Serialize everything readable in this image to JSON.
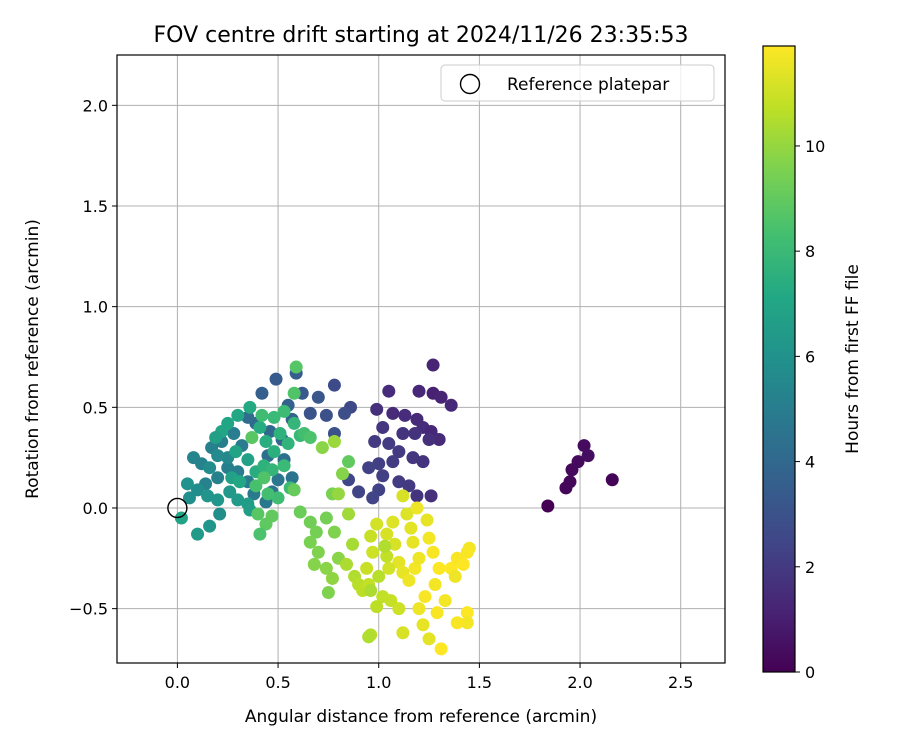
{
  "chart_data": {
    "type": "scatter",
    "title": "FOV centre drift starting at 2024/11/26 23:35:53",
    "xlabel": "Angular distance from reference (arcmin)",
    "ylabel": "Rotation from reference (arcmin)",
    "xlim": [
      -0.3,
      2.72
    ],
    "ylim": [
      -0.77,
      2.25
    ],
    "xticks": [
      0.0,
      0.5,
      1.0,
      1.5,
      2.0,
      2.5
    ],
    "xtick_labels": [
      "0.0",
      "0.5",
      "1.0",
      "1.5",
      "2.0",
      "2.5"
    ],
    "yticks": [
      -0.5,
      0.0,
      0.5,
      1.0,
      1.5,
      2.0
    ],
    "ytick_labels": [
      "−0.5",
      "0.0",
      "0.5",
      "1.0",
      "1.5",
      "2.0"
    ],
    "grid": true,
    "legend": {
      "position": "top-right",
      "entries": [
        "Reference platepar"
      ]
    },
    "reference_point": {
      "x": 0.0,
      "y": 0.0,
      "marker": "open-circle"
    },
    "colorbar": {
      "label": "Hours from first FF file",
      "colormap": "viridis",
      "range": [
        0,
        11.9
      ],
      "ticks": [
        0,
        2,
        4,
        6,
        8,
        10
      ],
      "tick_labels": [
        "0",
        "2",
        "4",
        "6",
        "8",
        "10"
      ]
    },
    "points": [
      {
        "x": 1.84,
        "y": 0.01,
        "c": 0.0
      },
      {
        "x": 1.93,
        "y": 0.1,
        "c": 0.15
      },
      {
        "x": 1.95,
        "y": 0.13,
        "c": 0.2
      },
      {
        "x": 1.96,
        "y": 0.19,
        "c": 0.25
      },
      {
        "x": 1.99,
        "y": 0.23,
        "c": 0.3
      },
      {
        "x": 2.02,
        "y": 0.31,
        "c": 0.35
      },
      {
        "x": 2.04,
        "y": 0.26,
        "c": 0.4
      },
      {
        "x": 2.16,
        "y": 0.14,
        "c": 0.1
      },
      {
        "x": 1.27,
        "y": 0.71,
        "c": 1.2
      },
      {
        "x": 1.2,
        "y": 0.58,
        "c": 1.3
      },
      {
        "x": 1.27,
        "y": 0.57,
        "c": 1.1
      },
      {
        "x": 1.31,
        "y": 0.55,
        "c": 1.2
      },
      {
        "x": 1.36,
        "y": 0.51,
        "c": 1.3
      },
      {
        "x": 1.05,
        "y": 0.58,
        "c": 1.5
      },
      {
        "x": 0.99,
        "y": 0.49,
        "c": 1.6
      },
      {
        "x": 1.07,
        "y": 0.47,
        "c": 1.4
      },
      {
        "x": 1.13,
        "y": 0.46,
        "c": 1.5
      },
      {
        "x": 1.19,
        "y": 0.44,
        "c": 1.4
      },
      {
        "x": 1.22,
        "y": 0.4,
        "c": 1.5
      },
      {
        "x": 1.26,
        "y": 0.38,
        "c": 1.3
      },
      {
        "x": 1.3,
        "y": 0.34,
        "c": 1.4
      },
      {
        "x": 1.25,
        "y": 0.34,
        "c": 1.6
      },
      {
        "x": 1.18,
        "y": 0.37,
        "c": 1.7
      },
      {
        "x": 1.12,
        "y": 0.37,
        "c": 1.8
      },
      {
        "x": 1.02,
        "y": 0.4,
        "c": 1.9
      },
      {
        "x": 0.98,
        "y": 0.33,
        "c": 2.0
      },
      {
        "x": 1.05,
        "y": 0.32,
        "c": 2.1
      },
      {
        "x": 1.1,
        "y": 0.28,
        "c": 2.0
      },
      {
        "x": 1.17,
        "y": 0.25,
        "c": 1.9
      },
      {
        "x": 1.22,
        "y": 0.23,
        "c": 1.8
      },
      {
        "x": 1.07,
        "y": 0.23,
        "c": 2.1
      },
      {
        "x": 1.0,
        "y": 0.22,
        "c": 2.2
      },
      {
        "x": 0.95,
        "y": 0.2,
        "c": 2.3
      },
      {
        "x": 1.02,
        "y": 0.16,
        "c": 2.2
      },
      {
        "x": 1.1,
        "y": 0.13,
        "c": 2.1
      },
      {
        "x": 1.15,
        "y": 0.11,
        "c": 2.0
      },
      {
        "x": 1.0,
        "y": 0.09,
        "c": 2.3
      },
      {
        "x": 0.97,
        "y": 0.05,
        "c": 2.4
      },
      {
        "x": 1.19,
        "y": 0.06,
        "c": 1.8
      },
      {
        "x": 1.26,
        "y": 0.06,
        "c": 1.6
      },
      {
        "x": 0.9,
        "y": 0.08,
        "c": 2.4
      },
      {
        "x": 0.85,
        "y": 0.14,
        "c": 2.5
      },
      {
        "x": 0.86,
        "y": 0.5,
        "c": 2.6
      },
      {
        "x": 0.78,
        "y": 0.61,
        "c": 2.7
      },
      {
        "x": 0.83,
        "y": 0.47,
        "c": 2.8
      },
      {
        "x": 0.74,
        "y": 0.46,
        "c": 2.9
      },
      {
        "x": 0.78,
        "y": 0.37,
        "c": 3.0
      },
      {
        "x": 0.66,
        "y": 0.47,
        "c": 3.1
      },
      {
        "x": 0.7,
        "y": 0.55,
        "c": 3.2
      },
      {
        "x": 0.62,
        "y": 0.57,
        "c": 3.3
      },
      {
        "x": 0.59,
        "y": 0.67,
        "c": 3.5
      },
      {
        "x": 0.49,
        "y": 0.64,
        "c": 3.4
      },
      {
        "x": 0.42,
        "y": 0.57,
        "c": 3.6
      },
      {
        "x": 0.55,
        "y": 0.51,
        "c": 3.7
      },
      {
        "x": 0.57,
        "y": 0.44,
        "c": 3.8
      },
      {
        "x": 0.52,
        "y": 0.34,
        "c": 3.9
      },
      {
        "x": 0.46,
        "y": 0.38,
        "c": 4.0
      },
      {
        "x": 0.39,
        "y": 0.42,
        "c": 4.1
      },
      {
        "x": 0.35,
        "y": 0.45,
        "c": 4.2
      },
      {
        "x": 0.45,
        "y": 0.26,
        "c": 4.3
      },
      {
        "x": 0.53,
        "y": 0.24,
        "c": 4.4
      },
      {
        "x": 0.57,
        "y": 0.15,
        "c": 4.5
      },
      {
        "x": 0.5,
        "y": 0.14,
        "c": 4.6
      },
      {
        "x": 0.47,
        "y": 0.08,
        "c": 4.6
      },
      {
        "x": 0.44,
        "y": 0.03,
        "c": 4.7
      },
      {
        "x": 0.38,
        "y": 0.07,
        "c": 4.8
      },
      {
        "x": 0.35,
        "y": 0.13,
        "c": 4.9
      },
      {
        "x": 0.3,
        "y": 0.18,
        "c": 5.0
      },
      {
        "x": 0.25,
        "y": 0.2,
        "c": 5.1
      },
      {
        "x": 0.2,
        "y": 0.15,
        "c": 5.2
      },
      {
        "x": 0.14,
        "y": 0.12,
        "c": 5.3
      },
      {
        "x": 0.08,
        "y": 0.25,
        "c": 5.4
      },
      {
        "x": 0.12,
        "y": 0.22,
        "c": 5.3
      },
      {
        "x": 0.17,
        "y": 0.3,
        "c": 5.2
      },
      {
        "x": 0.22,
        "y": 0.33,
        "c": 5.1
      },
      {
        "x": 0.28,
        "y": 0.37,
        "c": 5.0
      },
      {
        "x": 0.32,
        "y": 0.31,
        "c": 4.9
      },
      {
        "x": 0.25,
        "y": 0.25,
        "c": 5.5
      },
      {
        "x": 0.2,
        "y": 0.26,
        "c": 5.6
      },
      {
        "x": 0.16,
        "y": 0.2,
        "c": 5.7
      },
      {
        "x": 0.1,
        "y": 0.09,
        "c": 5.8
      },
      {
        "x": 0.06,
        "y": 0.05,
        "c": 5.9
      },
      {
        "x": 0.05,
        "y": 0.12,
        "c": 6.0
      },
      {
        "x": 0.15,
        "y": 0.06,
        "c": 6.1
      },
      {
        "x": 0.2,
        "y": 0.04,
        "c": 6.2
      },
      {
        "x": 0.26,
        "y": 0.08,
        "c": 6.3
      },
      {
        "x": 0.3,
        "y": 0.04,
        "c": 6.4
      },
      {
        "x": 0.35,
        "y": 0.02,
        "c": 6.5
      },
      {
        "x": 0.36,
        "y": -0.01,
        "c": 6.6
      },
      {
        "x": 0.21,
        "y": -0.03,
        "c": 5.8
      },
      {
        "x": 0.02,
        "y": -0.05,
        "c": 6.9
      },
      {
        "x": 0.1,
        "y": -0.13,
        "c": 6.4
      },
      {
        "x": 0.16,
        "y": -0.09,
        "c": 6.2
      },
      {
        "x": 0.35,
        "y": 0.24,
        "c": 6.8
      },
      {
        "x": 0.29,
        "y": 0.28,
        "c": 6.9
      },
      {
        "x": 0.25,
        "y": 0.42,
        "c": 7.0
      },
      {
        "x": 0.3,
        "y": 0.46,
        "c": 7.1
      },
      {
        "x": 0.36,
        "y": 0.5,
        "c": 7.2
      },
      {
        "x": 0.41,
        "y": 0.4,
        "c": 7.3
      },
      {
        "x": 0.44,
        "y": 0.33,
        "c": 7.4
      },
      {
        "x": 0.48,
        "y": 0.28,
        "c": 7.5
      },
      {
        "x": 0.51,
        "y": 0.37,
        "c": 7.6
      },
      {
        "x": 0.55,
        "y": 0.32,
        "c": 7.7
      },
      {
        "x": 0.58,
        "y": 0.42,
        "c": 7.8
      },
      {
        "x": 0.61,
        "y": 0.36,
        "c": 7.9
      },
      {
        "x": 0.22,
        "y": 0.38,
        "c": 7.0
      },
      {
        "x": 0.19,
        "y": 0.35,
        "c": 6.7
      },
      {
        "x": 0.27,
        "y": 0.15,
        "c": 6.8
      },
      {
        "x": 0.31,
        "y": 0.13,
        "c": 7.1
      },
      {
        "x": 0.39,
        "y": 0.18,
        "c": 7.4
      },
      {
        "x": 0.43,
        "y": 0.21,
        "c": 7.6
      },
      {
        "x": 0.47,
        "y": 0.19,
        "c": 7.8
      },
      {
        "x": 0.53,
        "y": 0.21,
        "c": 8.0
      },
      {
        "x": 0.56,
        "y": 0.1,
        "c": 8.1
      },
      {
        "x": 0.5,
        "y": 0.05,
        "c": 8.2
      },
      {
        "x": 0.45,
        "y": 0.07,
        "c": 8.3
      },
      {
        "x": 0.39,
        "y": 0.11,
        "c": 8.4
      },
      {
        "x": 0.42,
        "y": 0.46,
        "c": 8.2
      },
      {
        "x": 0.48,
        "y": 0.45,
        "c": 8.0
      },
      {
        "x": 0.53,
        "y": 0.48,
        "c": 8.1
      },
      {
        "x": 0.58,
        "y": 0.57,
        "c": 8.6
      },
      {
        "x": 0.59,
        "y": 0.7,
        "c": 8.7
      },
      {
        "x": 0.63,
        "y": 0.37,
        "c": 8.3
      },
      {
        "x": 0.66,
        "y": 0.35,
        "c": 8.5
      },
      {
        "x": 0.43,
        "y": 0.15,
        "c": 8.6
      },
      {
        "x": 0.37,
        "y": 0.35,
        "c": 8.8
      },
      {
        "x": 0.4,
        "y": -0.03,
        "c": 8.8
      },
      {
        "x": 0.44,
        "y": -0.08,
        "c": 8.9
      },
      {
        "x": 0.41,
        "y": -0.13,
        "c": 8.5
      },
      {
        "x": 0.47,
        "y": -0.04,
        "c": 9.0
      },
      {
        "x": 0.58,
        "y": 0.09,
        "c": 9.1
      },
      {
        "x": 0.61,
        "y": -0.02,
        "c": 9.2
      },
      {
        "x": 0.66,
        "y": -0.07,
        "c": 9.3
      },
      {
        "x": 0.69,
        "y": -0.12,
        "c": 9.4
      },
      {
        "x": 0.66,
        "y": -0.17,
        "c": 9.5
      },
      {
        "x": 0.7,
        "y": -0.22,
        "c": 9.6
      },
      {
        "x": 0.68,
        "y": -0.28,
        "c": 9.7
      },
      {
        "x": 0.74,
        "y": -0.3,
        "c": 9.8
      },
      {
        "x": 0.77,
        "y": -0.35,
        "c": 9.9
      },
      {
        "x": 0.75,
        "y": -0.42,
        "c": 9.6
      },
      {
        "x": 0.8,
        "y": -0.25,
        "c": 9.8
      },
      {
        "x": 0.78,
        "y": -0.12,
        "c": 9.6
      },
      {
        "x": 0.74,
        "y": -0.05,
        "c": 9.4
      },
      {
        "x": 0.85,
        "y": 0.23,
        "c": 9.0
      },
      {
        "x": 0.82,
        "y": 0.17,
        "c": 9.7
      },
      {
        "x": 0.77,
        "y": 0.07,
        "c": 9.5
      },
      {
        "x": 0.8,
        "y": 0.07,
        "c": 10.0
      },
      {
        "x": 0.78,
        "y": 0.33,
        "c": 10.1
      },
      {
        "x": 0.72,
        "y": 0.3,
        "c": 9.8
      },
      {
        "x": 0.85,
        "y": -0.03,
        "c": 10.2
      },
      {
        "x": 0.87,
        "y": -0.18,
        "c": 10.3
      },
      {
        "x": 0.84,
        "y": -0.28,
        "c": 10.4
      },
      {
        "x": 0.88,
        "y": -0.34,
        "c": 10.5
      },
      {
        "x": 0.9,
        "y": -0.38,
        "c": 10.6
      },
      {
        "x": 0.92,
        "y": -0.41,
        "c": 10.7
      },
      {
        "x": 0.95,
        "y": -0.38,
        "c": 10.8
      },
      {
        "x": 0.94,
        "y": -0.3,
        "c": 10.9
      },
      {
        "x": 0.97,
        "y": -0.22,
        "c": 11.0
      },
      {
        "x": 0.96,
        "y": -0.14,
        "c": 10.9
      },
      {
        "x": 0.99,
        "y": -0.08,
        "c": 11.1
      },
      {
        "x": 1.04,
        "y": -0.13,
        "c": 11.2
      },
      {
        "x": 1.07,
        "y": -0.07,
        "c": 11.3
      },
      {
        "x": 1.08,
        "y": -0.18,
        "c": 11.2
      },
      {
        "x": 1.1,
        "y": -0.27,
        "c": 11.4
      },
      {
        "x": 1.12,
        "y": -0.32,
        "c": 11.5
      },
      {
        "x": 1.15,
        "y": -0.36,
        "c": 11.6
      },
      {
        "x": 1.05,
        "y": -0.3,
        "c": 11.1
      },
      {
        "x": 1.18,
        "y": -0.3,
        "c": 11.7
      },
      {
        "x": 1.2,
        "y": -0.25,
        "c": 11.6
      },
      {
        "x": 1.17,
        "y": -0.17,
        "c": 11.5
      },
      {
        "x": 1.16,
        "y": -0.1,
        "c": 11.4
      },
      {
        "x": 1.14,
        "y": -0.03,
        "c": 11.3
      },
      {
        "x": 1.19,
        "y": 0.0,
        "c": 11.6
      },
      {
        "x": 1.12,
        "y": 0.06,
        "c": 11.2
      },
      {
        "x": 1.24,
        "y": -0.06,
        "c": 11.5
      },
      {
        "x": 1.25,
        "y": -0.15,
        "c": 11.7
      },
      {
        "x": 1.27,
        "y": -0.22,
        "c": 11.8
      },
      {
        "x": 1.3,
        "y": -0.3,
        "c": 11.9
      },
      {
        "x": 1.28,
        "y": -0.38,
        "c": 11.7
      },
      {
        "x": 1.23,
        "y": -0.44,
        "c": 11.8
      },
      {
        "x": 1.2,
        "y": -0.5,
        "c": 11.6
      },
      {
        "x": 1.22,
        "y": -0.58,
        "c": 11.5
      },
      {
        "x": 1.25,
        "y": -0.65,
        "c": 11.4
      },
      {
        "x": 1.31,
        "y": -0.7,
        "c": 11.9
      },
      {
        "x": 1.29,
        "y": -0.52,
        "c": 11.8
      },
      {
        "x": 1.33,
        "y": -0.46,
        "c": 11.7
      },
      {
        "x": 1.36,
        "y": -0.3,
        "c": 11.9
      },
      {
        "x": 1.38,
        "y": -0.34,
        "c": 11.6
      },
      {
        "x": 1.39,
        "y": -0.25,
        "c": 11.8
      },
      {
        "x": 1.42,
        "y": -0.28,
        "c": 11.9
      },
      {
        "x": 1.45,
        "y": -0.2,
        "c": 11.7
      },
      {
        "x": 1.44,
        "y": -0.22,
        "c": 11.8
      },
      {
        "x": 1.44,
        "y": -0.52,
        "c": 11.9
      },
      {
        "x": 1.44,
        "y": -0.57,
        "c": 11.7
      },
      {
        "x": 1.39,
        "y": -0.57,
        "c": 11.8
      },
      {
        "x": 1.12,
        "y": -0.62,
        "c": 11.2
      },
      {
        "x": 1.1,
        "y": -0.5,
        "c": 11.0
      },
      {
        "x": 1.06,
        "y": -0.46,
        "c": 10.9
      },
      {
        "x": 1.02,
        "y": -0.44,
        "c": 10.8
      },
      {
        "x": 0.99,
        "y": -0.49,
        "c": 10.7
      },
      {
        "x": 0.96,
        "y": -0.63,
        "c": 10.6
      },
      {
        "x": 0.95,
        "y": -0.64,
        "c": 10.5
      },
      {
        "x": 0.96,
        "y": -0.41,
        "c": 10.4
      },
      {
        "x": 1.0,
        "y": -0.34,
        "c": 10.6
      },
      {
        "x": 1.04,
        "y": -0.24,
        "c": 10.8
      },
      {
        "x": 1.03,
        "y": -0.19,
        "c": 10.5
      }
    ]
  }
}
